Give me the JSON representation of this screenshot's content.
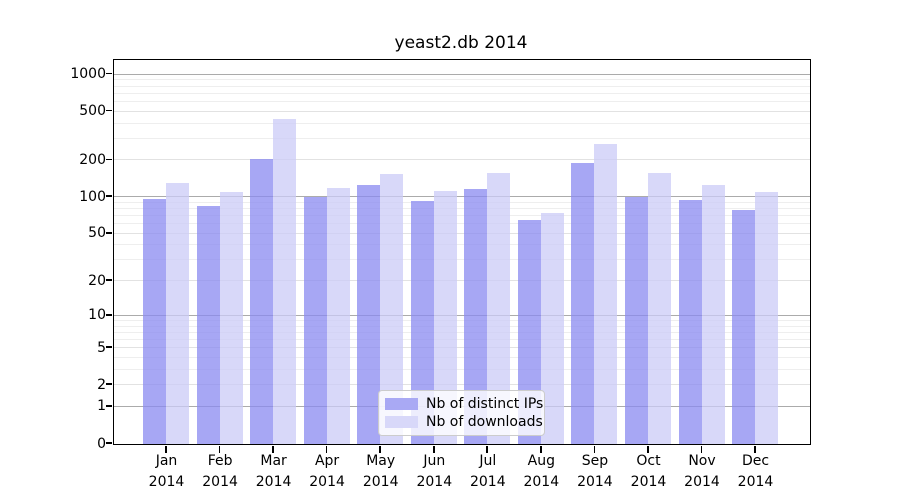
{
  "title": "yeast2.db 2014",
  "chart_data": {
    "type": "bar",
    "title": "yeast2.db 2014",
    "yscale": "log1p (symlog-like: y position proportional to log10(value+1))",
    "yticks": [
      0,
      1,
      2,
      5,
      10,
      20,
      50,
      100,
      200,
      500,
      1000
    ],
    "ylim": [
      0,
      1290
    ],
    "grid": true,
    "legend_position": "lower center",
    "categories": [
      {
        "month": "Jan",
        "year": "2014"
      },
      {
        "month": "Feb",
        "year": "2014"
      },
      {
        "month": "Mar",
        "year": "2014"
      },
      {
        "month": "Apr",
        "year": "2014"
      },
      {
        "month": "May",
        "year": "2014"
      },
      {
        "month": "Jun",
        "year": "2014"
      },
      {
        "month": "Jul",
        "year": "2014"
      },
      {
        "month": "Aug",
        "year": "2014"
      },
      {
        "month": "Sep",
        "year": "2014"
      },
      {
        "month": "Oct",
        "year": "2014"
      },
      {
        "month": "Nov",
        "year": "2014"
      },
      {
        "month": "Dec",
        "year": "2014"
      }
    ],
    "series": [
      {
        "name": "Nb of distinct IPs",
        "color": "#a9a9f4",
        "fill": "rgba(138,138,240,0.75)",
        "values": [
          97,
          85,
          206,
          100,
          125,
          93,
          117,
          65,
          192,
          101,
          95,
          78
        ]
      },
      {
        "name": "Nb of downloads",
        "color": "#d8d8f9",
        "fill": "rgba(203,203,247,0.75)",
        "values": [
          130,
          111,
          433,
          119,
          155,
          113,
          157,
          74,
          270,
          159,
          127,
          110
        ]
      }
    ]
  },
  "colors": {
    "background": "#ffffff",
    "text": "#000000",
    "grid_major": "#ababab",
    "grid_mid": "#e2e2e2",
    "grid_minor": "#eeeeee",
    "axis": "#000000",
    "legend_border": "#cccccc"
  }
}
